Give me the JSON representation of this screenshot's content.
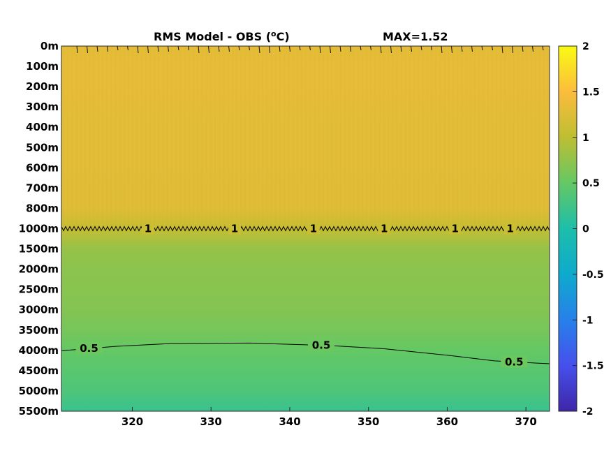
{
  "chart_data": {
    "type": "heatmap",
    "title": "RMS Model - OBS (",
    "title_unit": "o",
    "title_unit_suffix": "C)",
    "max_label": "MAX=1.52",
    "x_ticks": [
      320,
      330,
      340,
      350,
      360,
      370
    ],
    "x_range": [
      311,
      373
    ],
    "y_tick_labels": [
      "0m",
      "100m",
      "200m",
      "300m",
      "400m",
      "500m",
      "600m",
      "700m",
      "800m",
      "1000m",
      "1500m",
      "2000m",
      "2500m",
      "3000m",
      "3500m",
      "4000m",
      "4500m",
      "5000m",
      "5500m"
    ],
    "colorbar": {
      "min": -2,
      "max": 2,
      "tick_labels": [
        "2",
        "1.5",
        "1",
        "0.5",
        "0",
        "-0.5",
        "-1",
        "-1.5",
        "-2"
      ]
    },
    "depth_profile": [
      {
        "depth": "0m",
        "value": 1.3
      },
      {
        "depth": "100m",
        "value": 1.32
      },
      {
        "depth": "200m",
        "value": 1.32
      },
      {
        "depth": "300m",
        "value": 1.3
      },
      {
        "depth": "400m",
        "value": 1.28
      },
      {
        "depth": "500m",
        "value": 1.28
      },
      {
        "depth": "600m",
        "value": 1.28
      },
      {
        "depth": "700m",
        "value": 1.27
      },
      {
        "depth": "800m",
        "value": 1.26
      },
      {
        "depth": "1000m",
        "value": 1.05
      },
      {
        "depth": "1500m",
        "value": 0.78
      },
      {
        "depth": "2000m",
        "value": 0.72
      },
      {
        "depth": "2500m",
        "value": 0.7
      },
      {
        "depth": "3000m",
        "value": 0.68
      },
      {
        "depth": "3500m",
        "value": 0.6
      },
      {
        "depth": "4000m",
        "value": 0.5
      },
      {
        "depth": "4500m",
        "value": 0.42
      },
      {
        "depth": "5000m",
        "value": 0.35
      },
      {
        "depth": "5500m",
        "value": 0.2
      }
    ],
    "contours": [
      {
        "level": 1,
        "label": "1",
        "points": [
          [
            311,
            "1000m"
          ],
          [
            373,
            "1000m"
          ]
        ],
        "label_x": [
          322,
          333,
          343,
          352,
          361,
          368
        ]
      },
      {
        "level": 0.5,
        "label": "0.5",
        "points": [
          [
            311,
            4010
          ],
          [
            318,
            3900
          ],
          [
            325,
            3830
          ],
          [
            335,
            3820
          ],
          [
            345,
            3880
          ],
          [
            352,
            3960
          ],
          [
            360,
            4120
          ],
          [
            366,
            4260
          ],
          [
            373,
            4330
          ]
        ],
        "label_x": [
          314.5,
          344,
          368.5
        ]
      }
    ]
  }
}
